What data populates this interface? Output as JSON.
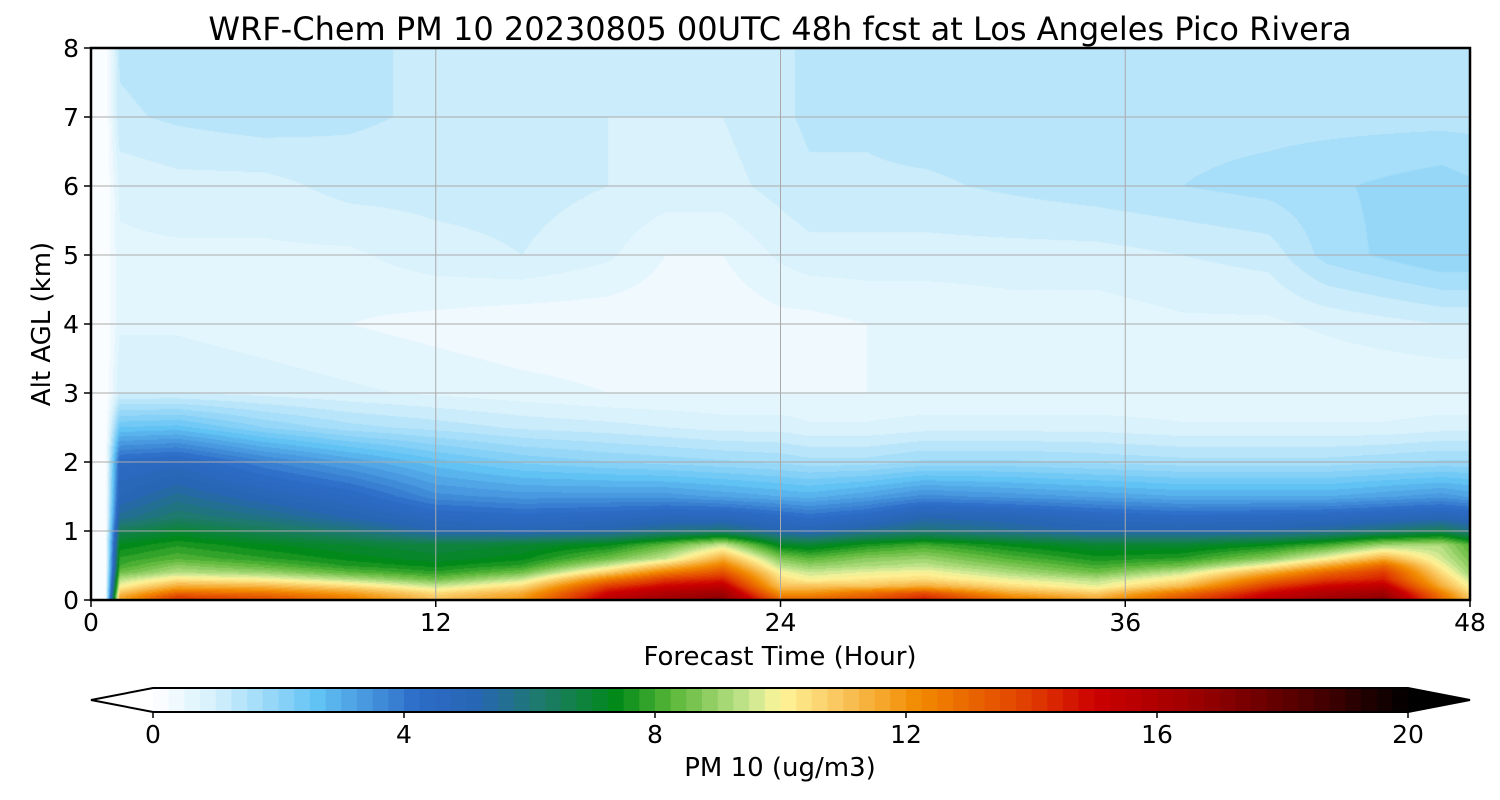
{
  "chart_data": {
    "type": "heatmap",
    "title": "WRF-Chem PM 10  20230805 00UTC 48h fcst at Los Angeles Pico Rivera",
    "xlabel": "Forecast Time (Hour)",
    "ylabel": "Alt AGL (km)",
    "xlim": [
      0,
      48
    ],
    "ylim": [
      0,
      8
    ],
    "xticks": [
      0,
      12,
      24,
      36,
      48
    ],
    "yticks": [
      0,
      1,
      2,
      3,
      4,
      5,
      6,
      7,
      8
    ],
    "grid": true,
    "colorbar": {
      "label": "PM 10  (ug/m3)",
      "min": 0,
      "max": 20,
      "ticks": [
        0,
        4,
        8,
        12,
        16,
        20
      ],
      "extend": "both",
      "orientation": "horizontal",
      "stops": [
        {
          "v": 0,
          "c": "#ffffff"
        },
        {
          "v": 1,
          "c": "#d4f0fc"
        },
        {
          "v": 2.6,
          "c": "#62c3f5"
        },
        {
          "v": 4.2,
          "c": "#2d6cc8"
        },
        {
          "v": 5.2,
          "c": "#2766b2"
        },
        {
          "v": 6.2,
          "c": "#1d7a6a"
        },
        {
          "v": 7.4,
          "c": "#008a18"
        },
        {
          "v": 8.3,
          "c": "#5cb83a"
        },
        {
          "v": 9.5,
          "c": "#c8e690"
        },
        {
          "v": 10,
          "c": "#fff59a"
        },
        {
          "v": 11,
          "c": "#f9c35a"
        },
        {
          "v": 12.2,
          "c": "#f28b00"
        },
        {
          "v": 14,
          "c": "#e03c00"
        },
        {
          "v": 15,
          "c": "#cc0000"
        },
        {
          "v": 16.5,
          "c": "#a00000"
        },
        {
          "v": 18.5,
          "c": "#4a0000"
        },
        {
          "v": 20,
          "c": "#000000"
        }
      ]
    },
    "x_hours": [
      0,
      0.5,
      1,
      3,
      6,
      9,
      12,
      15,
      18,
      20,
      22,
      24,
      25,
      27,
      29,
      32,
      35,
      38,
      41,
      43,
      45,
      47,
      48
    ],
    "y_km": [
      0,
      0.05,
      0.1,
      0.15,
      0.2,
      0.3,
      0.4,
      0.5,
      0.6,
      0.8,
      1.0,
      1.2,
      1.5,
      2.0,
      2.5,
      3.0,
      4.0,
      5.0,
      6.0,
      7.0,
      8.0
    ],
    "pm10": [
      [
        0,
        0,
        11.5,
        14.0,
        13.5,
        12.5,
        11.0,
        12.0,
        15.5,
        16.5,
        17.0,
        13.0,
        13.0,
        13.5,
        14.5,
        12.5,
        11.5,
        13.5,
        15.5,
        16.5,
        17.0,
        13.0,
        11.0
      ],
      [
        0,
        0,
        11.5,
        13.8,
        13.3,
        12.3,
        10.8,
        11.8,
        15.3,
        16.3,
        16.8,
        12.6,
        12.6,
        13.2,
        14.2,
        12.2,
        11.3,
        13.3,
        15.3,
        16.3,
        16.8,
        12.8,
        10.8
      ],
      [
        0,
        0,
        11.0,
        13.0,
        12.7,
        11.8,
        10.5,
        11.5,
        15.0,
        16.0,
        16.5,
        12.0,
        12.0,
        12.8,
        13.6,
        11.6,
        10.8,
        12.8,
        15.0,
        16.0,
        16.5,
        12.5,
        10.5
      ],
      [
        0,
        0,
        10.5,
        12.2,
        12.0,
        11.2,
        10.0,
        11.0,
        14.5,
        15.5,
        16.0,
        11.5,
        11.5,
        12.0,
        12.5,
        11.0,
        10.3,
        12.0,
        14.5,
        15.5,
        16.0,
        12.0,
        10.2
      ],
      [
        0,
        0,
        10.0,
        11.5,
        11.3,
        10.5,
        9.5,
        10.5,
        14.0,
        15.0,
        15.5,
        11.0,
        11.0,
        11.0,
        11.5,
        10.5,
        9.8,
        11.2,
        14.0,
        15.0,
        15.5,
        11.5,
        10.0
      ],
      [
        0,
        0,
        9.3,
        10.3,
        10.0,
        9.3,
        8.5,
        9.5,
        12.5,
        14.0,
        14.5,
        10.5,
        10.0,
        10.3,
        10.5,
        9.8,
        9.3,
        10.3,
        12.8,
        14.0,
        14.5,
        11.0,
        9.5
      ],
      [
        0,
        0,
        8.5,
        9.3,
        9.0,
        8.3,
        7.8,
        8.5,
        10.8,
        12.5,
        13.5,
        10.0,
        9.5,
        9.8,
        10.0,
        9.2,
        8.5,
        9.5,
        11.5,
        13.0,
        14.0,
        10.5,
        9.0
      ],
      [
        0,
        0,
        8.0,
        8.8,
        8.3,
        7.7,
        7.4,
        7.8,
        9.5,
        11.0,
        12.5,
        9.3,
        8.9,
        9.2,
        9.4,
        8.7,
        8.0,
        8.5,
        10.0,
        11.5,
        13.0,
        10.0,
        8.8
      ],
      [
        0,
        0,
        7.8,
        8.2,
        7.8,
        7.4,
        7.1,
        7.4,
        8.5,
        9.5,
        11.5,
        8.7,
        8.3,
        8.8,
        9.0,
        8.2,
        7.6,
        7.8,
        8.8,
        10.0,
        11.5,
        9.6,
        8.6
      ],
      [
        0,
        0,
        7.3,
        7.7,
        7.3,
        7.0,
        6.8,
        7.0,
        7.4,
        8.3,
        9.5,
        7.2,
        7.0,
        7.6,
        8.0,
        7.4,
        7.0,
        7.0,
        7.4,
        8.0,
        9.0,
        9.2,
        8.2
      ],
      [
        0,
        0,
        6.5,
        7.0,
        6.5,
        6.0,
        5.2,
        5.0,
        5.3,
        5.8,
        6.0,
        5.2,
        5.0,
        5.6,
        6.0,
        5.6,
        5.2,
        5.2,
        5.3,
        5.6,
        6.0,
        6.5,
        5.8
      ],
      [
        0,
        0,
        5.6,
        6.2,
        5.8,
        5.2,
        4.6,
        4.4,
        4.6,
        4.8,
        4.8,
        4.4,
        4.2,
        4.5,
        5.2,
        5.0,
        4.6,
        4.4,
        4.5,
        4.6,
        4.8,
        5.0,
        4.8
      ],
      [
        0,
        0,
        5.0,
        5.6,
        5.0,
        4.5,
        3.6,
        3.4,
        3.4,
        3.4,
        3.2,
        3.0,
        2.9,
        3.2,
        3.6,
        3.4,
        3.2,
        3.0,
        3.0,
        3.0,
        3.2,
        3.4,
        3.2
      ],
      [
        0,
        0,
        4.4,
        4.6,
        3.8,
        3.2,
        2.6,
        2.2,
        2.0,
        1.9,
        1.8,
        1.7,
        1.6,
        1.6,
        1.8,
        1.8,
        1.7,
        1.6,
        1.6,
        1.6,
        1.7,
        1.8,
        1.8
      ],
      [
        0,
        0,
        2.5,
        2.6,
        2.0,
        1.6,
        1.4,
        1.2,
        1.1,
        1.0,
        0.9,
        0.9,
        0.8,
        0.8,
        0.9,
        0.9,
        0.9,
        0.8,
        0.8,
        0.8,
        0.8,
        0.9,
        0.9
      ],
      [
        0,
        0,
        1.0,
        1.0,
        0.9,
        0.8,
        0.7,
        0.6,
        0.5,
        0.5,
        0.5,
        0.5,
        0.5,
        0.5,
        0.5,
        0.5,
        0.5,
        0.5,
        0.5,
        0.5,
        0.5,
        0.5,
        0.5
      ],
      [
        0,
        0,
        0.7,
        0.7,
        0.6,
        0.5,
        0.4,
        0.3,
        0.3,
        0.3,
        0.3,
        0.4,
        0.4,
        0.5,
        0.5,
        0.6,
        0.6,
        0.7,
        0.7,
        0.8,
        0.9,
        1.0,
        1.0
      ],
      [
        0,
        0,
        0.7,
        0.7,
        0.7,
        0.7,
        0.9,
        1.0,
        0.8,
        0.5,
        0.5,
        0.8,
        0.9,
        0.9,
        0.9,
        0.9,
        0.9,
        1.0,
        1.1,
        1.6,
        1.8,
        2.0,
        2.0
      ],
      [
        0,
        0,
        0.8,
        0.9,
        0.9,
        1.1,
        1.1,
        1.1,
        1.0,
        0.9,
        0.9,
        1.1,
        1.2,
        1.2,
        1.2,
        1.3,
        1.4,
        1.5,
        1.6,
        1.7,
        1.8,
        1.9,
        1.8
      ],
      [
        0,
        0,
        1.2,
        1.3,
        1.4,
        1.3,
        1.2,
        1.1,
        1.0,
        1.0,
        1.0,
        1.2,
        1.3,
        1.3,
        1.4,
        1.4,
        1.4,
        1.4,
        1.4,
        1.4,
        1.4,
        1.4,
        1.4
      ],
      [
        0,
        0,
        1.3,
        1.4,
        1.4,
        1.3,
        1.2,
        1.1,
        1.0,
        1.0,
        1.1,
        1.2,
        1.3,
        1.3,
        1.4,
        1.4,
        1.4,
        1.4,
        1.4,
        1.4,
        1.4,
        1.4,
        1.4
      ]
    ]
  }
}
